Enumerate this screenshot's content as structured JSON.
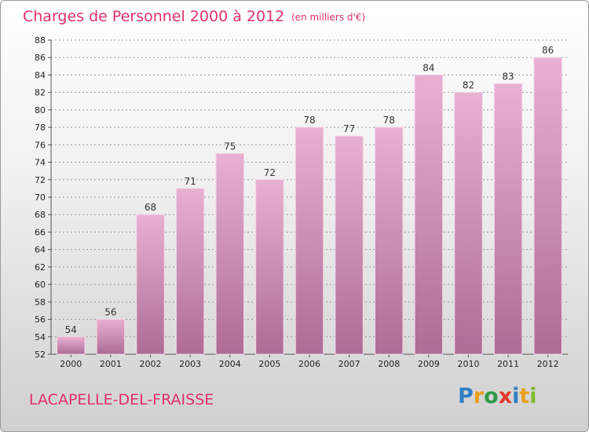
{
  "header": {
    "title": "Charges de Personnel 2000 à 2012",
    "unit": "(en milliers d'€)"
  },
  "footer": {
    "commune": "LACAPELLE-DEL-FRAISSE",
    "brand": "Proxiti",
    "brand_letters": [
      {
        "char": "P",
        "color": "#2f7fc3"
      },
      {
        "char": "r",
        "color": "#e8a01b"
      },
      {
        "char": "o",
        "color": "#2f9a46"
      },
      {
        "char": "x",
        "color": "#e23a2b"
      },
      {
        "char": "i",
        "color": "#2f7fc3"
      },
      {
        "char": "t",
        "color": "#e8a01b"
      },
      {
        "char": "i",
        "color": "#7dbb2d"
      }
    ]
  },
  "colors": {
    "bar_top": "#e8b0d3",
    "bar_bottom": "#ad6c95",
    "accent": "#e0306e",
    "grid": "#9a9a9a"
  },
  "chart_data": {
    "type": "bar",
    "title": "Charges de Personnel 2000 à 2012",
    "subtitle": "(en milliers d'€)",
    "categories": [
      "2000",
      "2001",
      "2002",
      "2003",
      "2004",
      "2005",
      "2006",
      "2007",
      "2008",
      "2009",
      "2010",
      "2011",
      "2012"
    ],
    "values": [
      54,
      56,
      68,
      71,
      75,
      72,
      78,
      77,
      78,
      84,
      82,
      83,
      86
    ],
    "ylim": [
      52,
      88
    ],
    "yticks": [
      52,
      54,
      56,
      58,
      60,
      62,
      64,
      66,
      68,
      70,
      72,
      74,
      76,
      78,
      80,
      82,
      84,
      86,
      88
    ],
    "grid": "horizontal dashed",
    "legend": "none"
  }
}
